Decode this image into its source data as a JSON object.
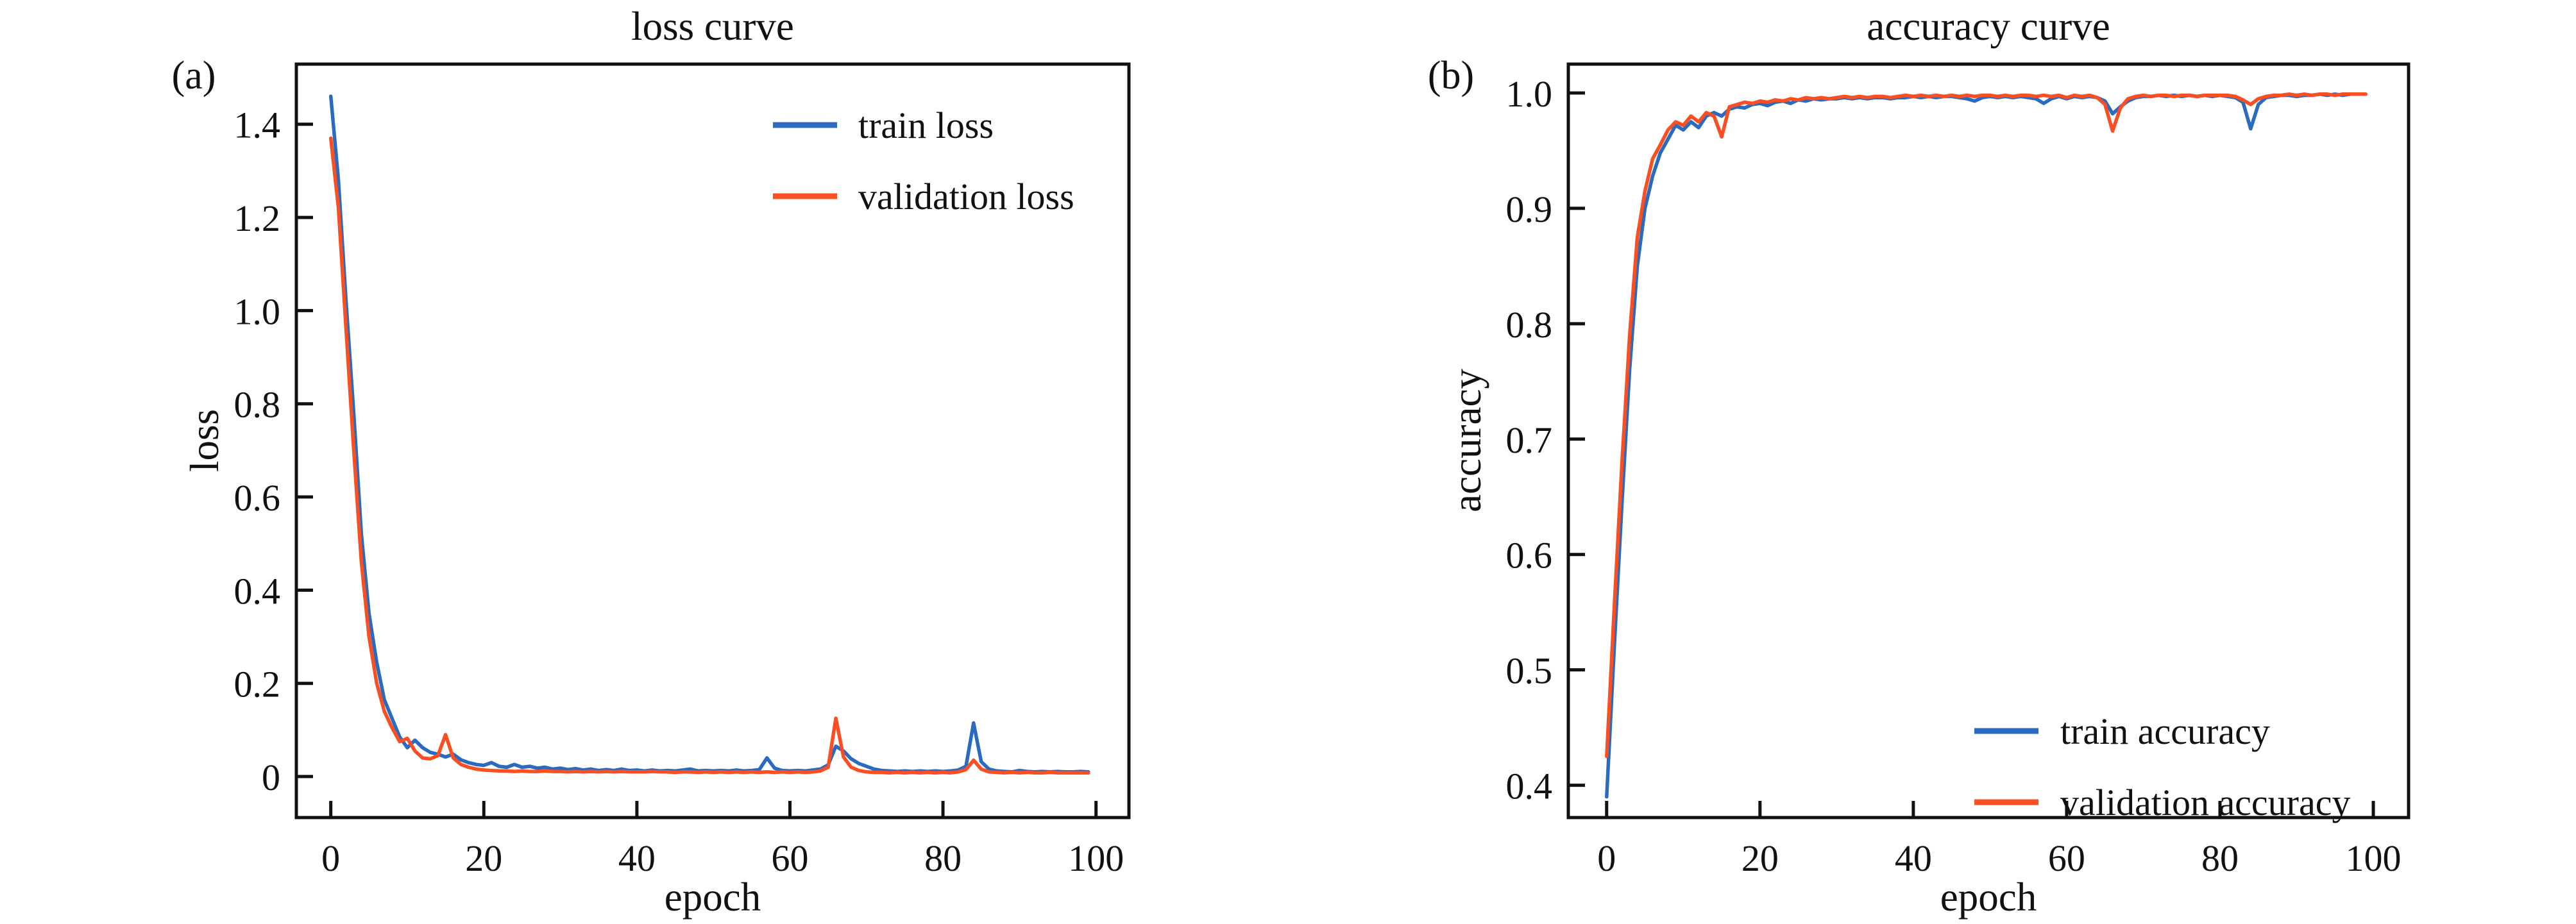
{
  "figure": {
    "background": "#ffffff",
    "spine_color": "#111111",
    "tag_a": "(a)",
    "tag_b": "(b)"
  },
  "chart_data": [
    {
      "type": "line",
      "panel_tag": "(a)",
      "title": "loss curve",
      "xlabel": "epoch",
      "ylabel": "loss",
      "xlim": [
        -4.5,
        104.3
      ],
      "ylim": [
        -0.088,
        1.529
      ],
      "grid": false,
      "legend_position": "upper right",
      "x_start": 0,
      "x_step": 1,
      "x_ticks": [
        {
          "v": 0,
          "label": "0"
        },
        {
          "v": 20,
          "label": "20"
        },
        {
          "v": 40,
          "label": "40"
        },
        {
          "v": 60,
          "label": "60"
        },
        {
          "v": 80,
          "label": "80"
        },
        {
          "v": 100,
          "label": "100"
        }
      ],
      "y_ticks": [
        {
          "v": 1.4,
          "label": "1.4"
        },
        {
          "v": 1.2,
          "label": "1.2"
        },
        {
          "v": 1.0,
          "label": "1.0"
        },
        {
          "v": 0.8,
          "label": "0.8"
        },
        {
          "v": 0.6,
          "label": "0.6"
        },
        {
          "v": 0.4,
          "label": "0.4"
        },
        {
          "v": 0.2,
          "label": "0.2"
        },
        {
          "v": 0,
          "label": "0"
        }
      ],
      "series": [
        {
          "name": "train loss",
          "color": "#2a6bbf",
          "values": [
            1.46,
            1.28,
            1.02,
            0.78,
            0.52,
            0.35,
            0.245,
            0.165,
            0.125,
            0.085,
            0.062,
            0.078,
            0.062,
            0.052,
            0.048,
            0.042,
            0.048,
            0.036,
            0.03,
            0.026,
            0.024,
            0.03,
            0.022,
            0.02,
            0.026,
            0.02,
            0.022,
            0.018,
            0.02,
            0.016,
            0.018,
            0.015,
            0.017,
            0.014,
            0.016,
            0.013,
            0.015,
            0.013,
            0.016,
            0.013,
            0.014,
            0.012,
            0.014,
            0.012,
            0.013,
            0.012,
            0.014,
            0.016,
            0.012,
            0.013,
            0.012,
            0.013,
            0.012,
            0.014,
            0.012,
            0.013,
            0.015,
            0.04,
            0.018,
            0.013,
            0.012,
            0.013,
            0.012,
            0.014,
            0.016,
            0.025,
            0.065,
            0.055,
            0.038,
            0.028,
            0.022,
            0.016,
            0.013,
            0.012,
            0.011,
            0.012,
            0.011,
            0.012,
            0.011,
            0.012,
            0.011,
            0.012,
            0.014,
            0.022,
            0.115,
            0.032,
            0.016,
            0.012,
            0.011,
            0.01,
            0.013,
            0.011,
            0.01,
            0.011,
            0.01,
            0.011,
            0.01,
            0.01,
            0.011,
            0.01
          ]
        },
        {
          "name": "validation loss",
          "color": "#fa4f22",
          "values": [
            1.37,
            1.22,
            0.96,
            0.7,
            0.46,
            0.3,
            0.2,
            0.14,
            0.105,
            0.075,
            0.082,
            0.055,
            0.04,
            0.038,
            0.045,
            0.09,
            0.04,
            0.026,
            0.02,
            0.016,
            0.014,
            0.013,
            0.012,
            0.012,
            0.011,
            0.012,
            0.011,
            0.011,
            0.012,
            0.011,
            0.011,
            0.01,
            0.011,
            0.01,
            0.011,
            0.01,
            0.011,
            0.01,
            0.011,
            0.01,
            0.01,
            0.01,
            0.011,
            0.01,
            0.01,
            0.009,
            0.01,
            0.01,
            0.009,
            0.01,
            0.009,
            0.01,
            0.009,
            0.01,
            0.009,
            0.01,
            0.009,
            0.01,
            0.009,
            0.01,
            0.009,
            0.01,
            0.009,
            0.01,
            0.012,
            0.02,
            0.125,
            0.042,
            0.02,
            0.013,
            0.01,
            0.009,
            0.009,
            0.008,
            0.009,
            0.008,
            0.009,
            0.008,
            0.009,
            0.008,
            0.009,
            0.008,
            0.01,
            0.015,
            0.035,
            0.016,
            0.01,
            0.009,
            0.008,
            0.009,
            0.008,
            0.009,
            0.008,
            0.008,
            0.009,
            0.008,
            0.008,
            0.008,
            0.008,
            0.008
          ]
        }
      ]
    },
    {
      "type": "line",
      "panel_tag": "(b)",
      "title": "accuracy curve",
      "xlabel": "epoch",
      "ylabel": "accuracy",
      "xlim": [
        -5.0,
        104.6
      ],
      "ylim": [
        0.372,
        1.025
      ],
      "grid": false,
      "legend_position": "lower right",
      "x_start": 0,
      "x_step": 1,
      "x_ticks": [
        {
          "v": 0,
          "label": "0"
        },
        {
          "v": 20,
          "label": "20"
        },
        {
          "v": 40,
          "label": "40"
        },
        {
          "v": 60,
          "label": "60"
        },
        {
          "v": 80,
          "label": "80"
        },
        {
          "v": 100,
          "label": "100"
        }
      ],
      "y_ticks": [
        {
          "v": 1.0,
          "label": "1.0"
        },
        {
          "v": 0.9,
          "label": "0.9"
        },
        {
          "v": 0.8,
          "label": "0.8"
        },
        {
          "v": 0.7,
          "label": "0.7"
        },
        {
          "v": 0.6,
          "label": "0.6"
        },
        {
          "v": 0.5,
          "label": "0.5"
        },
        {
          "v": 0.4,
          "label": "0.4"
        }
      ],
      "series": [
        {
          "name": "train accuracy",
          "color": "#2a6bbf",
          "values": [
            0.39,
            0.52,
            0.645,
            0.76,
            0.85,
            0.9,
            0.928,
            0.948,
            0.96,
            0.972,
            0.968,
            0.975,
            0.97,
            0.98,
            0.983,
            0.98,
            0.986,
            0.988,
            0.987,
            0.99,
            0.991,
            0.989,
            0.992,
            0.993,
            0.991,
            0.994,
            0.993,
            0.995,
            0.994,
            0.995,
            0.995,
            0.996,
            0.995,
            0.996,
            0.995,
            0.996,
            0.996,
            0.995,
            0.996,
            0.996,
            0.997,
            0.996,
            0.997,
            0.996,
            0.997,
            0.997,
            0.996,
            0.995,
            0.993,
            0.996,
            0.997,
            0.996,
            0.997,
            0.996,
            0.997,
            0.996,
            0.995,
            0.991,
            0.995,
            0.997,
            0.995,
            0.997,
            0.996,
            0.997,
            0.996,
            0.993,
            0.982,
            0.988,
            0.993,
            0.996,
            0.997,
            0.997,
            0.998,
            0.997,
            0.998,
            0.997,
            0.998,
            0.997,
            0.998,
            0.997,
            0.998,
            0.997,
            0.996,
            0.992,
            0.969,
            0.99,
            0.996,
            0.997,
            0.998,
            0.998,
            0.997,
            0.998,
            0.998,
            0.999,
            0.998,
            0.999,
            0.998,
            0.999,
            0.999,
            0.999
          ]
        },
        {
          "name": "validation accuracy",
          "color": "#fa4f22",
          "values": [
            0.425,
            0.555,
            0.68,
            0.79,
            0.875,
            0.915,
            0.943,
            0.955,
            0.968,
            0.975,
            0.972,
            0.98,
            0.975,
            0.983,
            0.98,
            0.962,
            0.988,
            0.99,
            0.992,
            0.991,
            0.993,
            0.992,
            0.994,
            0.993,
            0.995,
            0.994,
            0.996,
            0.995,
            0.996,
            0.995,
            0.996,
            0.997,
            0.996,
            0.997,
            0.996,
            0.997,
            0.997,
            0.996,
            0.997,
            0.998,
            0.997,
            0.998,
            0.997,
            0.998,
            0.997,
            0.998,
            0.997,
            0.998,
            0.997,
            0.998,
            0.998,
            0.997,
            0.998,
            0.997,
            0.998,
            0.998,
            0.997,
            0.998,
            0.997,
            0.998,
            0.996,
            0.998,
            0.997,
            0.998,
            0.996,
            0.99,
            0.967,
            0.987,
            0.995,
            0.997,
            0.998,
            0.997,
            0.998,
            0.998,
            0.997,
            0.998,
            0.998,
            0.997,
            0.998,
            0.998,
            0.998,
            0.998,
            0.997,
            0.994,
            0.99,
            0.995,
            0.997,
            0.998,
            0.998,
            0.999,
            0.998,
            0.999,
            0.998,
            0.999,
            0.999,
            0.998,
            0.999,
            0.999,
            0.999,
            0.999
          ]
        }
      ]
    }
  ]
}
